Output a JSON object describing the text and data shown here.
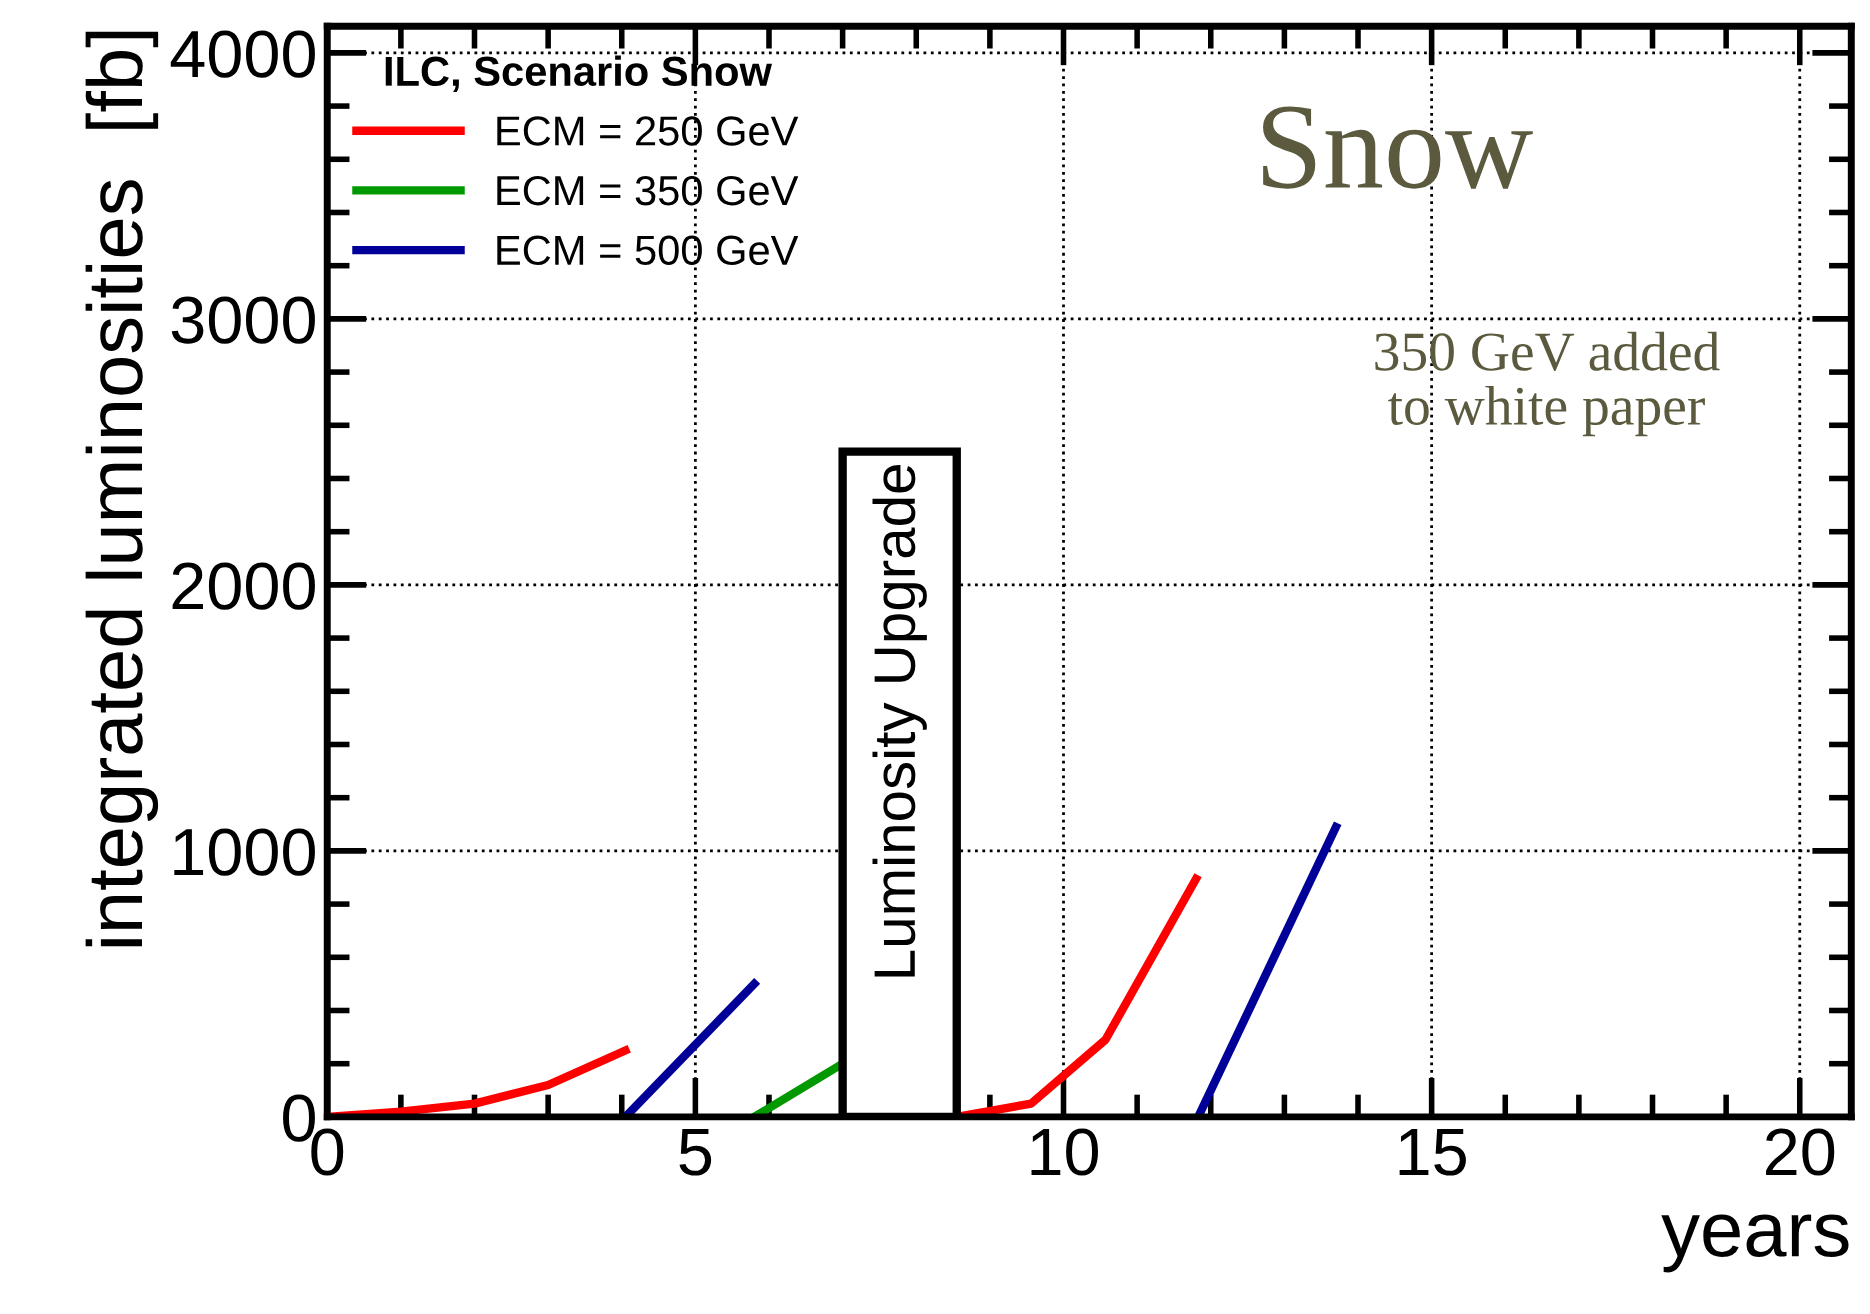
{
  "chart_data": {
    "type": "line",
    "xlabel": "years",
    "ylabel": "integrated luminosities  [fb]",
    "legend_title": "ILC, Scenario Snow",
    "series": [
      {
        "name": "ECM = 250 GeV",
        "color": "#ff0000",
        "x": [
          0,
          1.0,
          2.0,
          3.0,
          4.05
        ],
        "values": [
          0,
          20,
          50,
          120,
          250
        ]
      },
      {
        "name": "ECM = 350 GeV",
        "color": "#009900",
        "x": [
          5.8,
          7.0
        ],
        "values": [
          0,
          200
        ]
      },
      {
        "name": "ECM = 500 GeV",
        "color": "#000099",
        "x": [
          4.05,
          5.8
        ],
        "values": [
          0,
          500
        ]
      },
      {
        "color": "#ff0000",
        "x": [
          8.55,
          9.56,
          10.57,
          11.8
        ],
        "values": [
          0,
          50,
          290,
          895
        ]
      },
      {
        "color": "#000099",
        "x": [
          11.83,
          13.7
        ],
        "values": [
          0,
          1090
        ]
      }
    ],
    "bands": [
      {
        "axis": "x",
        "from": 7.0,
        "to": 8.55,
        "label": "Luminosity Upgrade"
      }
    ],
    "annotations": [
      "Snow",
      "350 GeV added\nto white paper"
    ],
    "xlim": [
      0,
      20.7
    ],
    "xticks": [
      0,
      5,
      10,
      15,
      20
    ],
    "ylim": [
      0,
      4100
    ],
    "yticks": [
      0,
      1000,
      2000,
      3000,
      4000
    ],
    "grid": true,
    "legend": "top left"
  }
}
